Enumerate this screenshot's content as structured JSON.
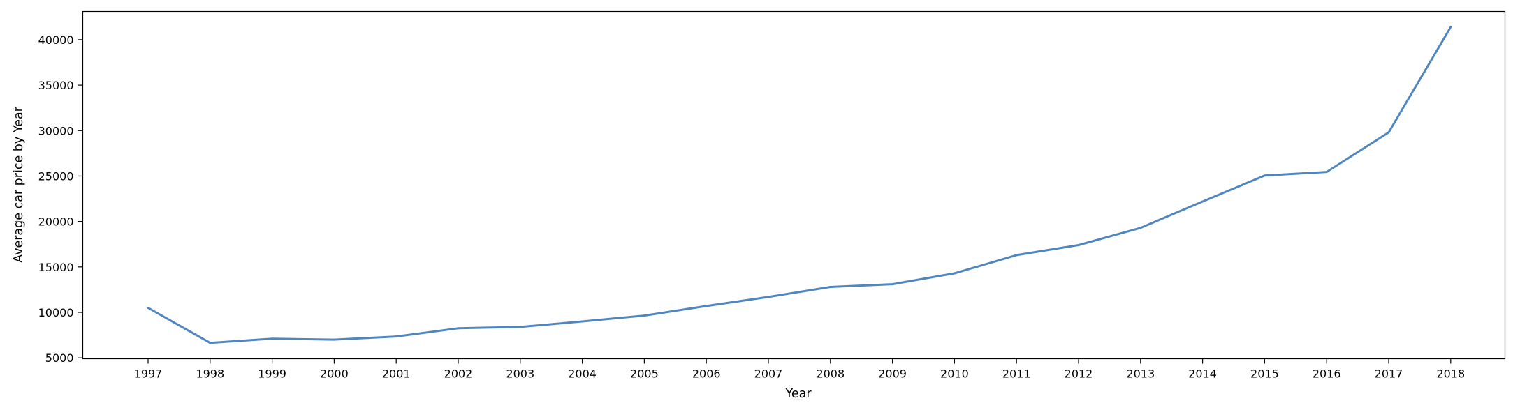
{
  "chart_data": {
    "type": "line",
    "xlabel": "Year",
    "ylabel": "Average car price by Year",
    "x": [
      "1997",
      "1998",
      "1999",
      "2000",
      "2001",
      "2002",
      "2003",
      "2004",
      "2005",
      "2006",
      "2007",
      "2008",
      "2009",
      "2010",
      "2011",
      "2012",
      "2013",
      "2014",
      "2015",
      "2016",
      "2017",
      "2018"
    ],
    "series": [
      {
        "color": "#4f86c0",
        "values": [
          10500,
          6650,
          7100,
          7000,
          7350,
          8250,
          8400,
          9000,
          9650,
          10700,
          11700,
          12800,
          13100,
          14300,
          16300,
          17400,
          19300,
          22200,
          25050,
          25450,
          29800,
          41400
        ]
      }
    ],
    "yticks": [
      5000,
      10000,
      15000,
      20000,
      25000,
      30000,
      35000,
      40000
    ],
    "ylim": [
      4900,
      43100
    ],
    "grid": false,
    "legend": "none"
  }
}
